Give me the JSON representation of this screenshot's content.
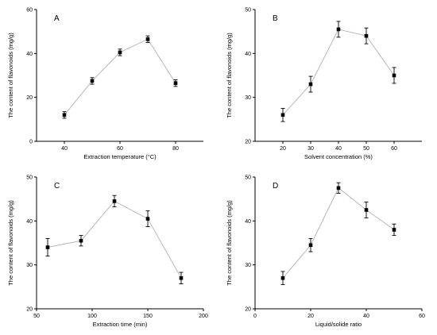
{
  "chart_data": [
    {
      "panel": "A",
      "type": "line",
      "xlabel": "Extraction temperature (°C)",
      "ylabel": "The content of flavonoids (mg/g)",
      "xlim": [
        30,
        90
      ],
      "ylim": [
        0,
        60
      ],
      "xticks": [
        40,
        60,
        80
      ],
      "yticks": [
        0,
        20,
        40,
        60
      ],
      "x": [
        40,
        50,
        60,
        70,
        80
      ],
      "values": [
        12,
        27.5,
        40.5,
        46.5,
        26.5
      ],
      "errors": [
        1.5,
        1.5,
        1.5,
        1.5,
        1.5
      ]
    },
    {
      "panel": "B",
      "type": "line",
      "xlabel": "Solvent concentration (%)",
      "ylabel": "The content of flavonoids (mg/g)",
      "xlim": [
        10,
        70
      ],
      "ylim": [
        20,
        50
      ],
      "xticks": [
        20,
        30,
        40,
        50,
        60
      ],
      "yticks": [
        20,
        30,
        40,
        50
      ],
      "x": [
        20,
        30,
        40,
        50,
        60
      ],
      "values": [
        26,
        33,
        45.5,
        44,
        35
      ],
      "errors": [
        1.5,
        1.8,
        1.8,
        1.8,
        1.8
      ]
    },
    {
      "panel": "C",
      "type": "line",
      "xlabel": "Extraction time (min)",
      "ylabel": "The content of flavonoids (mg/g)",
      "xlim": [
        50,
        200
      ],
      "ylim": [
        20,
        50
      ],
      "xticks": [
        50,
        100,
        150,
        200
      ],
      "yticks": [
        20,
        30,
        40,
        50
      ],
      "x": [
        60,
        90,
        120,
        150,
        180
      ],
      "values": [
        34,
        35.5,
        44.5,
        40.5,
        27
      ],
      "errors": [
        2,
        1.2,
        1.3,
        1.8,
        1.3
      ]
    },
    {
      "panel": "D",
      "type": "line",
      "xlabel": "Liquid/solide ratio",
      "ylabel": "The content of flavonoids (mg/g)",
      "xlim": [
        0,
        60
      ],
      "ylim": [
        20,
        50
      ],
      "xticks": [
        0,
        20,
        40,
        60
      ],
      "yticks": [
        20,
        30,
        40,
        50
      ],
      "x": [
        10,
        20,
        30,
        40,
        50
      ],
      "values": [
        27,
        34.5,
        47.5,
        42.5,
        38
      ],
      "errors": [
        1.5,
        1.5,
        1.2,
        1.8,
        1.3
      ]
    }
  ]
}
